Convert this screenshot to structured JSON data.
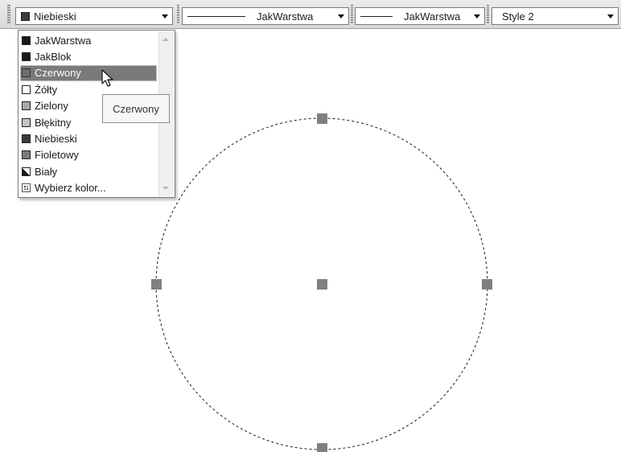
{
  "toolbar": {
    "color_combo": {
      "value": "Niebieski"
    },
    "linetype_combo": {
      "value": "JakWarstwa"
    },
    "lineweight_combo": {
      "value": "JakWarstwa"
    },
    "plotstyle_combo": {
      "value": "Style 2"
    }
  },
  "color_list": {
    "items": [
      {
        "label": "JakWarstwa",
        "swatch": "#1a1a1a"
      },
      {
        "label": "JakBlok",
        "swatch": "#1a1a1a"
      },
      {
        "label": "Czerwony",
        "swatch": "#6e6e6e"
      },
      {
        "label": "Żółty",
        "swatch": "#ffffff"
      },
      {
        "label": "Zielony",
        "swatch": "#a8a8a8"
      },
      {
        "label": "Błękitny",
        "swatch": "#c4c4c4"
      },
      {
        "label": "Niebieski",
        "swatch": "#3a3a3a"
      },
      {
        "label": "Fioletowy",
        "swatch": "#7c7c7c"
      },
      {
        "label": "Biały",
        "swatch": "half"
      },
      {
        "label": "Wybierz kolor...",
        "swatch": "picker"
      }
    ],
    "selected": "Czerwony"
  },
  "tooltip": {
    "text": "Czerwony"
  },
  "colors": {
    "grip": "#808080",
    "circle_stroke": "#1a1a1a",
    "selection": "#7a7a7a"
  }
}
